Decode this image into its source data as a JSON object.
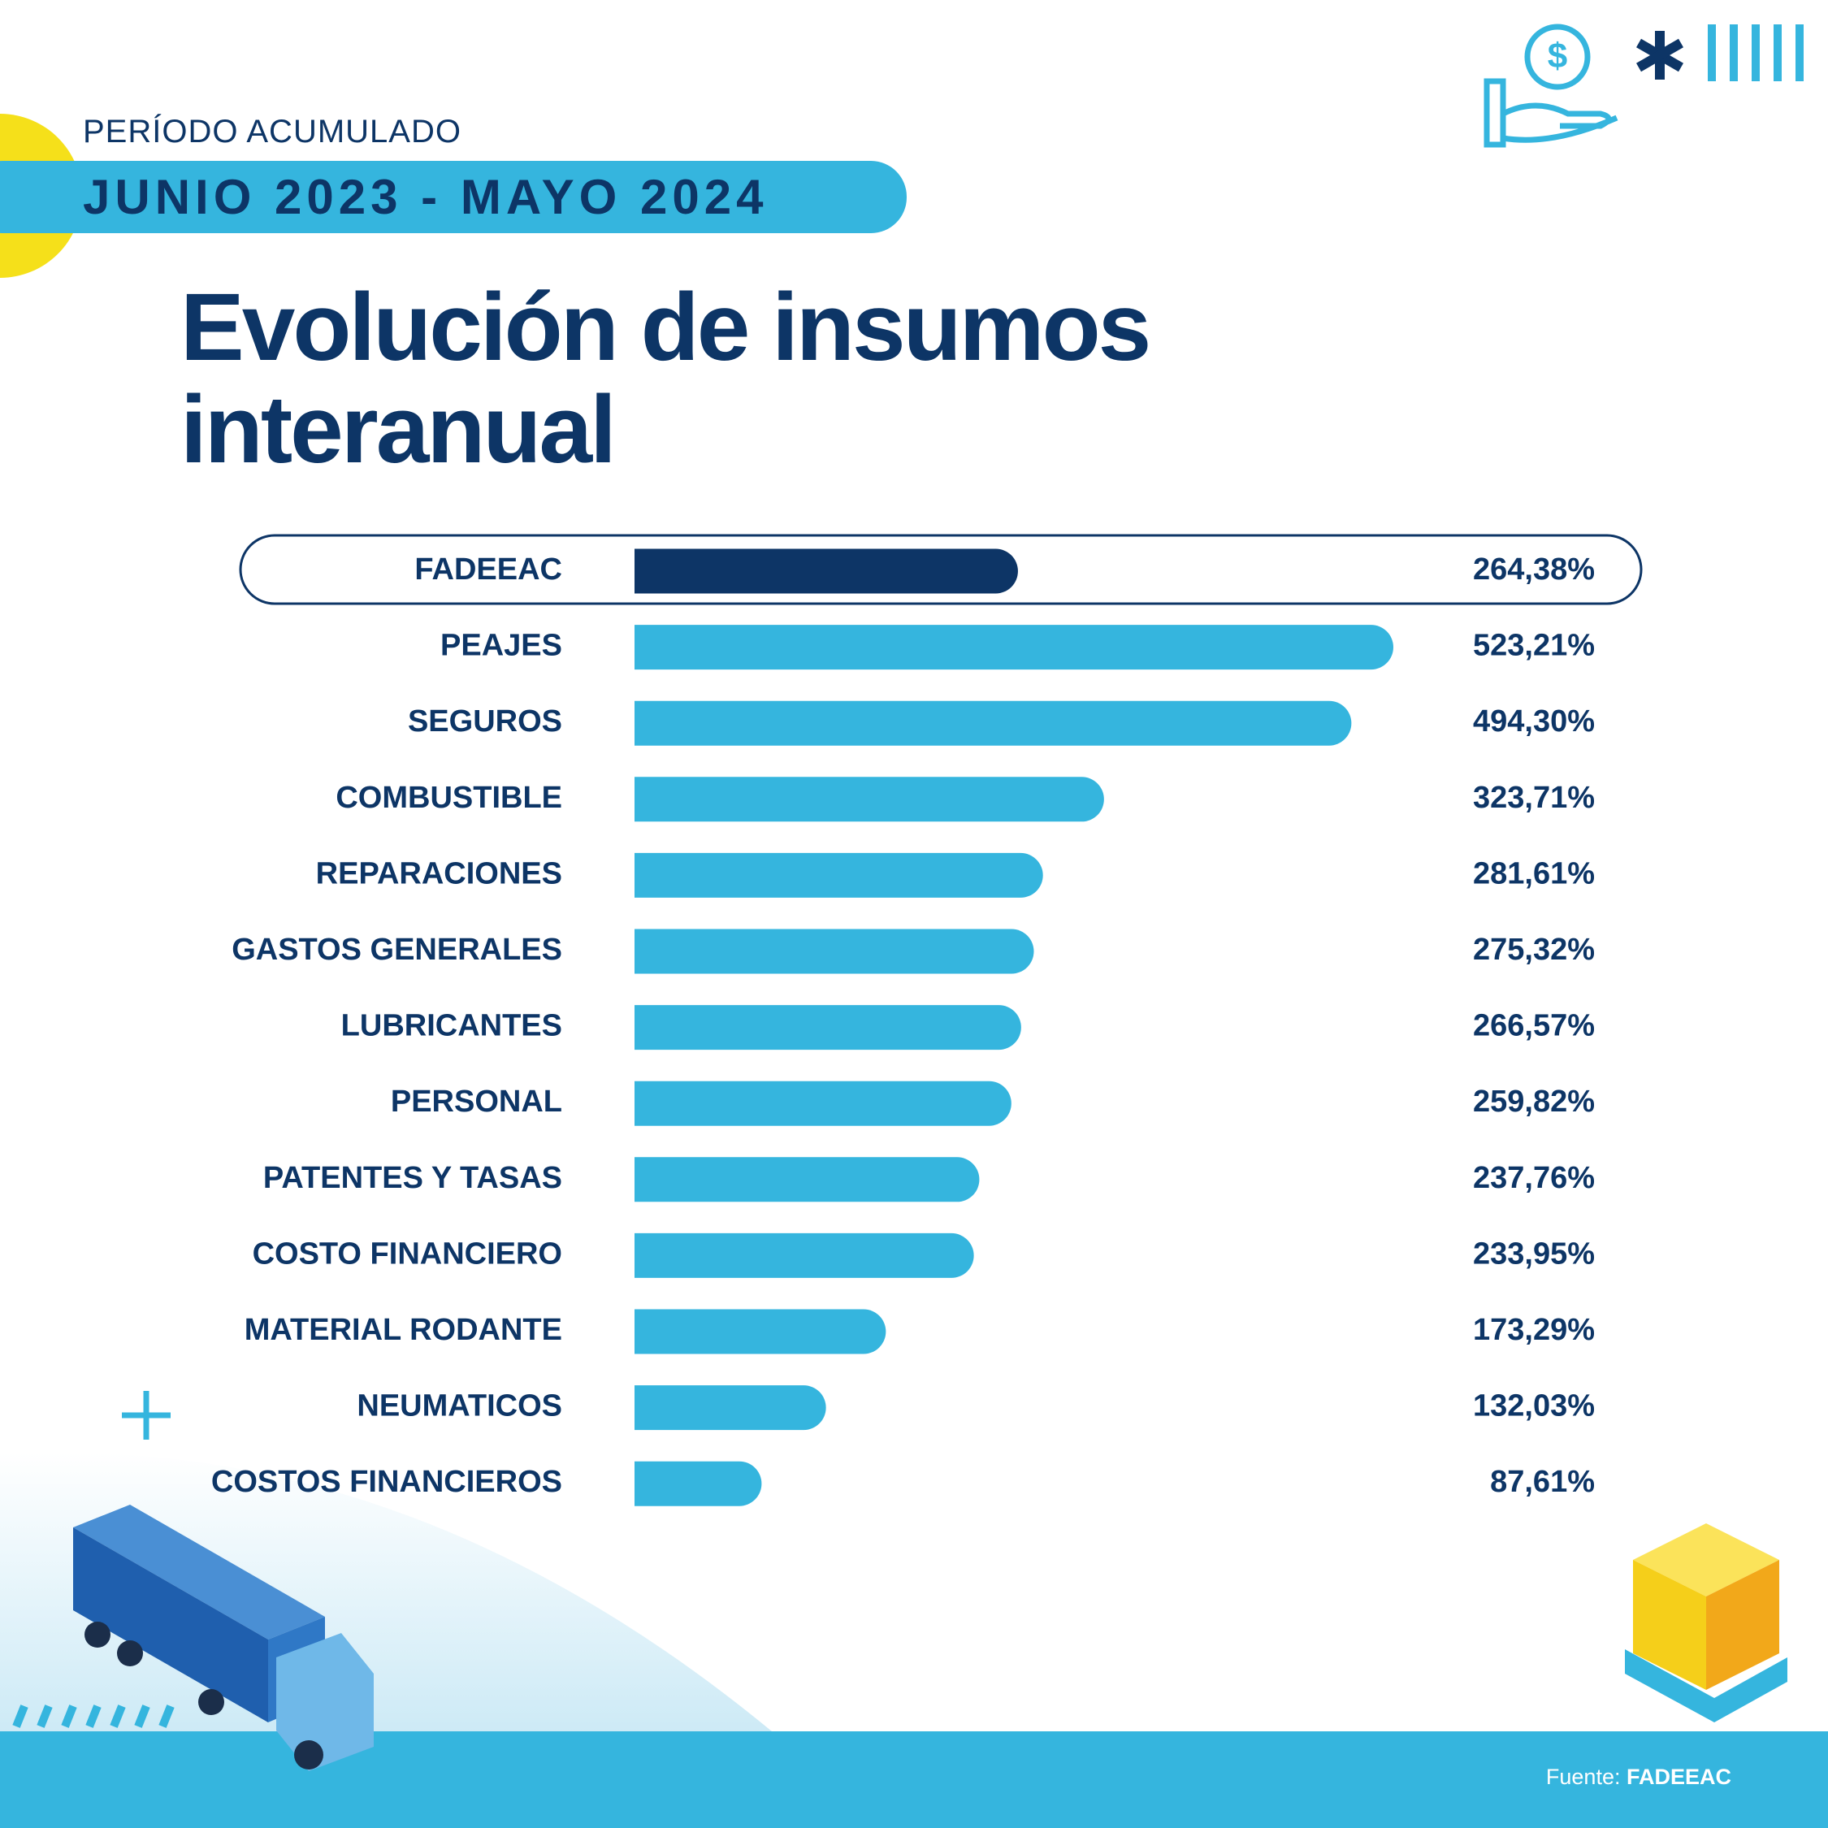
{
  "period_label": "PERÍODO ACUMULADO",
  "period": "JUNIO 2023 - MAYO 2024",
  "source_label": "Fuente:",
  "source": "FADEEAC",
  "chart_data": {
    "type": "bar",
    "orientation": "horizontal",
    "title": "Evolución de insumos interanual",
    "categories": [
      "FADEEAC",
      "PEAJES",
      "SEGUROS",
      "COMBUSTIBLE",
      "REPARACIONES",
      "GASTOS GENERALES",
      "LUBRICANTES",
      "PERSONAL",
      "PATENTES Y TASAS",
      "COSTO FINANCIERO",
      "MATERIAL RODANTE",
      "NEUMATICOS",
      "COSTOS FINANCIEROS"
    ],
    "values": [
      264.38,
      523.21,
      494.3,
      323.71,
      281.61,
      275.32,
      266.57,
      259.82,
      237.76,
      233.95,
      173.29,
      132.03,
      87.61
    ],
    "value_labels": [
      "264,38%",
      "523,21%",
      "494,30%",
      "323,71%",
      "281,61%",
      "275,32%",
      "266,57%",
      "259,82%",
      "237,76%",
      "233,95%",
      "173,29%",
      "132,03%",
      "87,61%"
    ],
    "colors": [
      "#0d3566",
      "#35b5de",
      "#35b5de",
      "#35b5de",
      "#35b5de",
      "#35b5de",
      "#35b5de",
      "#35b5de",
      "#35b5de",
      "#35b5de",
      "#35b5de",
      "#35b5de",
      "#35b5de"
    ]
  }
}
